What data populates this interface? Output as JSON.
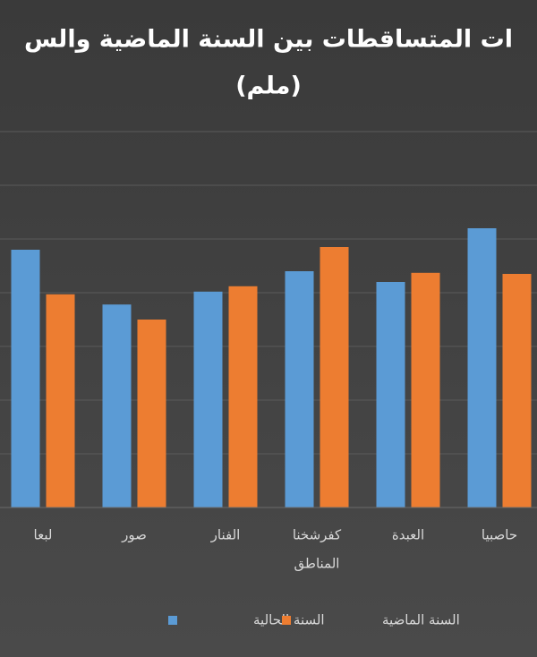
{
  "chart_data": {
    "type": "bar",
    "title": "ات المتساقطات بين السنة الماضية والس",
    "subtitle": "(ملم)",
    "x_label": "المناطق",
    "categories": [
      "لبعا",
      "صور",
      "الفنار",
      "كفرشخنا",
      "العبدة",
      "حاصبيا"
    ],
    "series": [
      {
        "name": "السنة الحالية",
        "color": "#5b9bd5",
        "values": [
          480,
          378,
          402,
          440,
          420,
          520
        ]
      },
      {
        "name": "السنة الماضية",
        "color": "#ed7d31",
        "values": [
          397,
          350,
          412,
          485,
          437,
          435
        ]
      }
    ],
    "ylim": [
      0,
      700
    ],
    "yticks": [
      0,
      100,
      200,
      300,
      400,
      500,
      600,
      700
    ],
    "grid": true
  }
}
